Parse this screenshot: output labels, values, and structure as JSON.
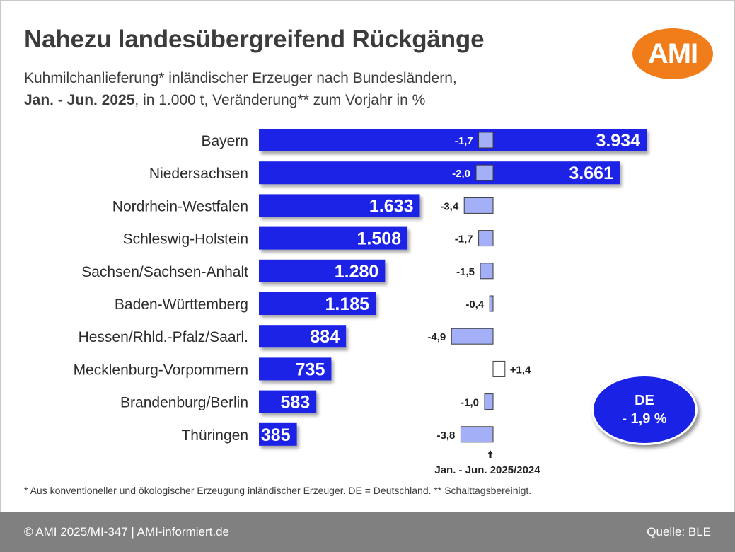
{
  "header": {
    "title": "Nahezu landesübergreifend Rückgänge",
    "subtitle_line1": "Kuhmilchanlieferung* inländischer Erzeuger nach Bundesländern,",
    "subtitle_line2_bold": "Jan. - Jun. 2025",
    "subtitle_line2_rest": ", in 1.000 t, Veränderung** zum Vorjahr in %",
    "logo_text": "AMI"
  },
  "colors": {
    "bar": "#1a22e6",
    "change_bar": "#a3b0f7",
    "logo": "#f07d1a",
    "footer": "#808080"
  },
  "chart_data": {
    "type": "bar",
    "orientation": "horizontal",
    "categories": [
      "Bayern",
      "Niedersachsen",
      "Nordrhein-Westfalen",
      "Schleswig-Holstein",
      "Sachsen/Sachsen-Anhalt",
      "Baden-Württemberg",
      "Hessen/Rhld.-Pfalz/Saarl.",
      "Mecklenburg-Vorpommern",
      "Brandenburg/Berlin",
      "Thüringen"
    ],
    "series": [
      {
        "values": [
          3934,
          3661,
          1633,
          1508,
          1280,
          1185,
          884,
          735,
          583,
          385
        ],
        "labels": [
          "3.934",
          "3.661",
          "1.633",
          "1.508",
          "1.280",
          "1.185",
          "884",
          "735",
          "583",
          "385"
        ]
      },
      {
        "values": [
          -1.7,
          -2.0,
          -3.4,
          -1.7,
          -1.5,
          -0.4,
          -4.9,
          1.4,
          -1.0,
          -3.8
        ],
        "labels": [
          "-1,7",
          "-2,0",
          "-3,4",
          "-1,7",
          "-1,5",
          "-0,4",
          "-4,9",
          "+1,4",
          "-1,0",
          "-3,8"
        ]
      }
    ],
    "change_axis_label": "Jan. - Jun. 2025/2024",
    "total": {
      "label": "DE",
      "value": -1.9,
      "text": "- 1,9 %"
    }
  },
  "footnote": "* Aus konventioneller und ökologischer Erzeugung inländischer Erzeuger. DE = Deutschland. ** Schalttagsbereinigt.",
  "footer": {
    "left": "© AMI 2025/MI-347 | AMI-informiert.de",
    "right": "Quelle: BLE"
  }
}
